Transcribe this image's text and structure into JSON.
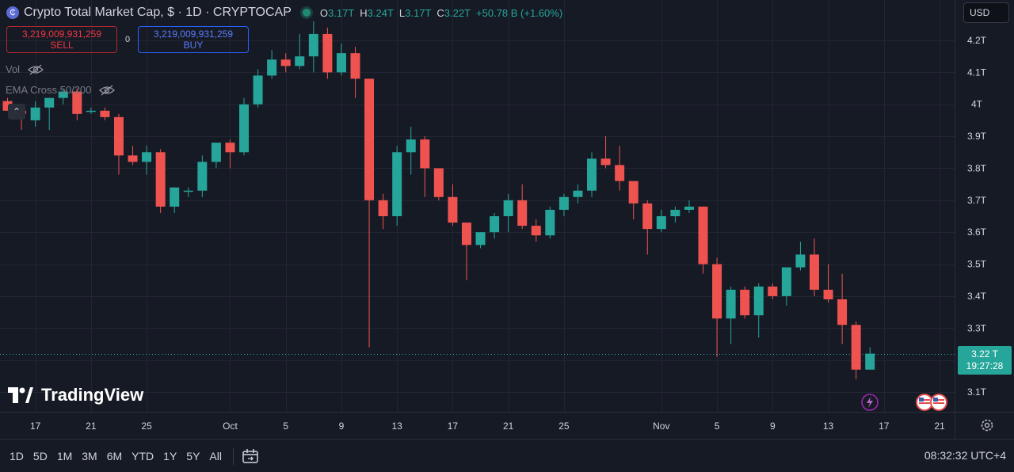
{
  "header": {
    "title": "Crypto Total Market Cap, $ · 1D · CRYPTOCAP",
    "ohlc": [
      {
        "label": "O",
        "value": "3.17T"
      },
      {
        "label": "H",
        "value": "3.24T"
      },
      {
        "label": "L",
        "value": "3.17T"
      },
      {
        "label": "C",
        "value": "3.22T"
      },
      {
        "label": "",
        "value": "+50.78 B (+1.60%)"
      }
    ]
  },
  "trade": {
    "sell_price": "3,219,009,931,259",
    "sell_label": "SELL",
    "spread": "0",
    "buy_price": "3,219,009,931,259",
    "buy_label": "BUY"
  },
  "indicators": {
    "vol_label": "Vol",
    "ema_label": "EMA Cross 50/200"
  },
  "currency": "USD",
  "last_price": {
    "price": "3.22 T",
    "countdown": "19:27:28"
  },
  "brand": "TradingView",
  "ranges": [
    "1D",
    "5D",
    "1M",
    "3M",
    "6M",
    "YTD",
    "1Y",
    "5Y",
    "All"
  ],
  "clock": "08:32:32 UTC+4",
  "colors": {
    "up": "#26a69a",
    "down": "#ef5350",
    "background": "#161a25",
    "grid": "#232632"
  },
  "chart_data": {
    "type": "candlestick",
    "unit": "T",
    "ylim": [
      3.05,
      4.3
    ],
    "y_ticks": [
      {
        "value": 4.2,
        "label": "4.2T"
      },
      {
        "value": 4.1,
        "label": "4.1T"
      },
      {
        "value": 4.0,
        "label": "4T"
      },
      {
        "value": 3.9,
        "label": "3.9T"
      },
      {
        "value": 3.8,
        "label": "3.8T"
      },
      {
        "value": 3.7,
        "label": "3.7T"
      },
      {
        "value": 3.6,
        "label": "3.6T"
      },
      {
        "value": 3.5,
        "label": "3.5T"
      },
      {
        "value": 3.4,
        "label": "3.4T"
      },
      {
        "value": 3.3,
        "label": "3.3T"
      },
      {
        "value": 3.1,
        "label": "3.1T"
      }
    ],
    "x_ticks": [
      {
        "index": 2,
        "label": "17"
      },
      {
        "index": 6,
        "label": "21"
      },
      {
        "index": 10,
        "label": "25"
      },
      {
        "index": 16,
        "label": "Oct"
      },
      {
        "index": 20,
        "label": "5"
      },
      {
        "index": 24,
        "label": "9"
      },
      {
        "index": 28,
        "label": "13"
      },
      {
        "index": 32,
        "label": "17"
      },
      {
        "index": 36,
        "label": "21"
      },
      {
        "index": 40,
        "label": "25"
      },
      {
        "index": 47,
        "label": "Nov"
      },
      {
        "index": 51,
        "label": "5"
      },
      {
        "index": 55,
        "label": "9"
      },
      {
        "index": 59,
        "label": "13"
      },
      {
        "index": 63,
        "label": "17"
      },
      {
        "index": 67,
        "label": "21"
      }
    ],
    "candles": [
      {
        "o": 4.01,
        "h": 4.02,
        "l": 3.98,
        "c": 3.98
      },
      {
        "o": 3.98,
        "h": 4.0,
        "l": 3.92,
        "c": 3.97
      },
      {
        "o": 3.95,
        "h": 4.01,
        "l": 3.93,
        "c": 3.99
      },
      {
        "o": 3.99,
        "h": 4.02,
        "l": 3.92,
        "c": 4.02
      },
      {
        "o": 4.02,
        "h": 4.05,
        "l": 4.0,
        "c": 4.04
      },
      {
        "o": 4.04,
        "h": 4.05,
        "l": 3.95,
        "c": 3.97
      },
      {
        "o": 3.98,
        "h": 3.99,
        "l": 3.97,
        "c": 3.98
      },
      {
        "o": 3.98,
        "h": 3.99,
        "l": 3.95,
        "c": 3.96
      },
      {
        "o": 3.96,
        "h": 3.97,
        "l": 3.78,
        "c": 3.84
      },
      {
        "o": 3.84,
        "h": 3.87,
        "l": 3.81,
        "c": 3.82
      },
      {
        "o": 3.82,
        "h": 3.87,
        "l": 3.78,
        "c": 3.85
      },
      {
        "o": 3.85,
        "h": 3.86,
        "l": 3.66,
        "c": 3.68
      },
      {
        "o": 3.68,
        "h": 3.74,
        "l": 3.66,
        "c": 3.74
      },
      {
        "o": 3.73,
        "h": 3.74,
        "l": 3.71,
        "c": 3.73
      },
      {
        "o": 3.73,
        "h": 3.84,
        "l": 3.71,
        "c": 3.82
      },
      {
        "o": 3.82,
        "h": 3.88,
        "l": 3.8,
        "c": 3.88
      },
      {
        "o": 3.88,
        "h": 3.89,
        "l": 3.8,
        "c": 3.85
      },
      {
        "o": 3.85,
        "h": 4.02,
        "l": 3.84,
        "c": 4.0
      },
      {
        "o": 4.0,
        "h": 4.11,
        "l": 3.99,
        "c": 4.09
      },
      {
        "o": 4.09,
        "h": 4.17,
        "l": 4.08,
        "c": 4.14
      },
      {
        "o": 4.14,
        "h": 4.16,
        "l": 4.1,
        "c": 4.12
      },
      {
        "o": 4.12,
        "h": 4.22,
        "l": 4.11,
        "c": 4.15
      },
      {
        "o": 4.15,
        "h": 4.26,
        "l": 4.1,
        "c": 4.22
      },
      {
        "o": 4.22,
        "h": 4.24,
        "l": 4.08,
        "c": 4.1
      },
      {
        "o": 4.1,
        "h": 4.19,
        "l": 4.09,
        "c": 4.16
      },
      {
        "o": 4.16,
        "h": 4.18,
        "l": 4.02,
        "c": 4.08
      },
      {
        "o": 4.08,
        "h": 4.08,
        "l": 3.24,
        "c": 3.7
      },
      {
        "o": 3.7,
        "h": 3.72,
        "l": 3.61,
        "c": 3.65
      },
      {
        "o": 3.65,
        "h": 3.87,
        "l": 3.62,
        "c": 3.85
      },
      {
        "o": 3.85,
        "h": 3.93,
        "l": 3.78,
        "c": 3.89
      },
      {
        "o": 3.89,
        "h": 3.9,
        "l": 3.71,
        "c": 3.8
      },
      {
        "o": 3.8,
        "h": 3.8,
        "l": 3.7,
        "c": 3.71
      },
      {
        "o": 3.71,
        "h": 3.75,
        "l": 3.62,
        "c": 3.63
      },
      {
        "o": 3.63,
        "h": 3.63,
        "l": 3.45,
        "c": 3.56
      },
      {
        "o": 3.56,
        "h": 3.6,
        "l": 3.55,
        "c": 3.6
      },
      {
        "o": 3.6,
        "h": 3.66,
        "l": 3.58,
        "c": 3.65
      },
      {
        "o": 3.65,
        "h": 3.72,
        "l": 3.6,
        "c": 3.7
      },
      {
        "o": 3.7,
        "h": 3.75,
        "l": 3.61,
        "c": 3.62
      },
      {
        "o": 3.62,
        "h": 3.64,
        "l": 3.57,
        "c": 3.59
      },
      {
        "o": 3.59,
        "h": 3.68,
        "l": 3.58,
        "c": 3.67
      },
      {
        "o": 3.67,
        "h": 3.72,
        "l": 3.65,
        "c": 3.71
      },
      {
        "o": 3.71,
        "h": 3.75,
        "l": 3.69,
        "c": 3.73
      },
      {
        "o": 3.73,
        "h": 3.85,
        "l": 3.71,
        "c": 3.83
      },
      {
        "o": 3.83,
        "h": 3.9,
        "l": 3.8,
        "c": 3.81
      },
      {
        "o": 3.81,
        "h": 3.87,
        "l": 3.73,
        "c": 3.76
      },
      {
        "o": 3.76,
        "h": 3.76,
        "l": 3.64,
        "c": 3.69
      },
      {
        "o": 3.69,
        "h": 3.7,
        "l": 3.53,
        "c": 3.61
      },
      {
        "o": 3.61,
        "h": 3.67,
        "l": 3.6,
        "c": 3.65
      },
      {
        "o": 3.65,
        "h": 3.68,
        "l": 3.63,
        "c": 3.67
      },
      {
        "o": 3.67,
        "h": 3.7,
        "l": 3.66,
        "c": 3.68
      },
      {
        "o": 3.68,
        "h": 3.68,
        "l": 3.47,
        "c": 3.5
      },
      {
        "o": 3.5,
        "h": 3.52,
        "l": 3.21,
        "c": 3.33
      },
      {
        "o": 3.33,
        "h": 3.43,
        "l": 3.25,
        "c": 3.42
      },
      {
        "o": 3.42,
        "h": 3.43,
        "l": 3.33,
        "c": 3.34
      },
      {
        "o": 3.34,
        "h": 3.44,
        "l": 3.27,
        "c": 3.43
      },
      {
        "o": 3.43,
        "h": 3.44,
        "l": 3.39,
        "c": 3.4
      },
      {
        "o": 3.4,
        "h": 3.49,
        "l": 3.37,
        "c": 3.49
      },
      {
        "o": 3.49,
        "h": 3.57,
        "l": 3.48,
        "c": 3.53
      },
      {
        "o": 3.53,
        "h": 3.58,
        "l": 3.4,
        "c": 3.42
      },
      {
        "o": 3.42,
        "h": 3.5,
        "l": 3.38,
        "c": 3.39
      },
      {
        "o": 3.39,
        "h": 3.47,
        "l": 3.25,
        "c": 3.31
      },
      {
        "o": 3.31,
        "h": 3.32,
        "l": 3.14,
        "c": 3.17
      },
      {
        "o": 3.17,
        "h": 3.24,
        "l": 3.17,
        "c": 3.22
      }
    ]
  }
}
